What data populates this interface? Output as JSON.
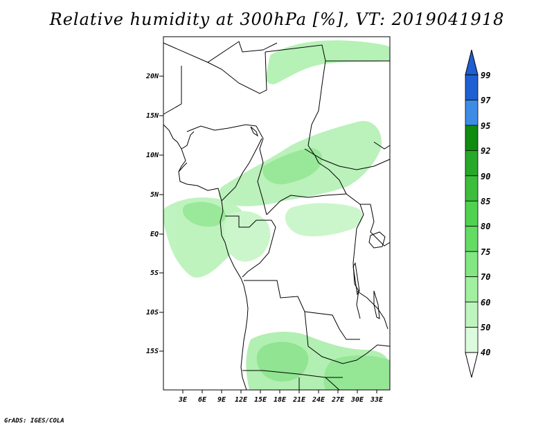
{
  "title": "Relative humidity at 300hPa [%], VT: 2019041918",
  "footer": "GrADS: IGES/COLA",
  "map": {
    "lon_range_deg_east": [
      0,
      35
    ],
    "lat_range_deg": [
      -20,
      25
    ],
    "lat_ticks": [
      "20N",
      "15N",
      "10N",
      "5N",
      "EQ",
      "5S",
      "10S",
      "15S"
    ],
    "lon_ticks": [
      "3E",
      "6E",
      "9E",
      "12E",
      "15E",
      "18E",
      "21E",
      "24E",
      "27E",
      "30E",
      "33E"
    ]
  },
  "colorbar": {
    "levels": [
      "99",
      "97",
      "95",
      "92",
      "90",
      "85",
      "80",
      "75",
      "70",
      "60",
      "50",
      "40"
    ],
    "colors": [
      "#1e5fd2",
      "#3c8ce6",
      "#0f8c0f",
      "#28a828",
      "#3cbe3c",
      "#50d250",
      "#64dc64",
      "#82e682",
      "#a0f0a0",
      "#bef5be",
      "#dcfadc"
    ]
  }
}
